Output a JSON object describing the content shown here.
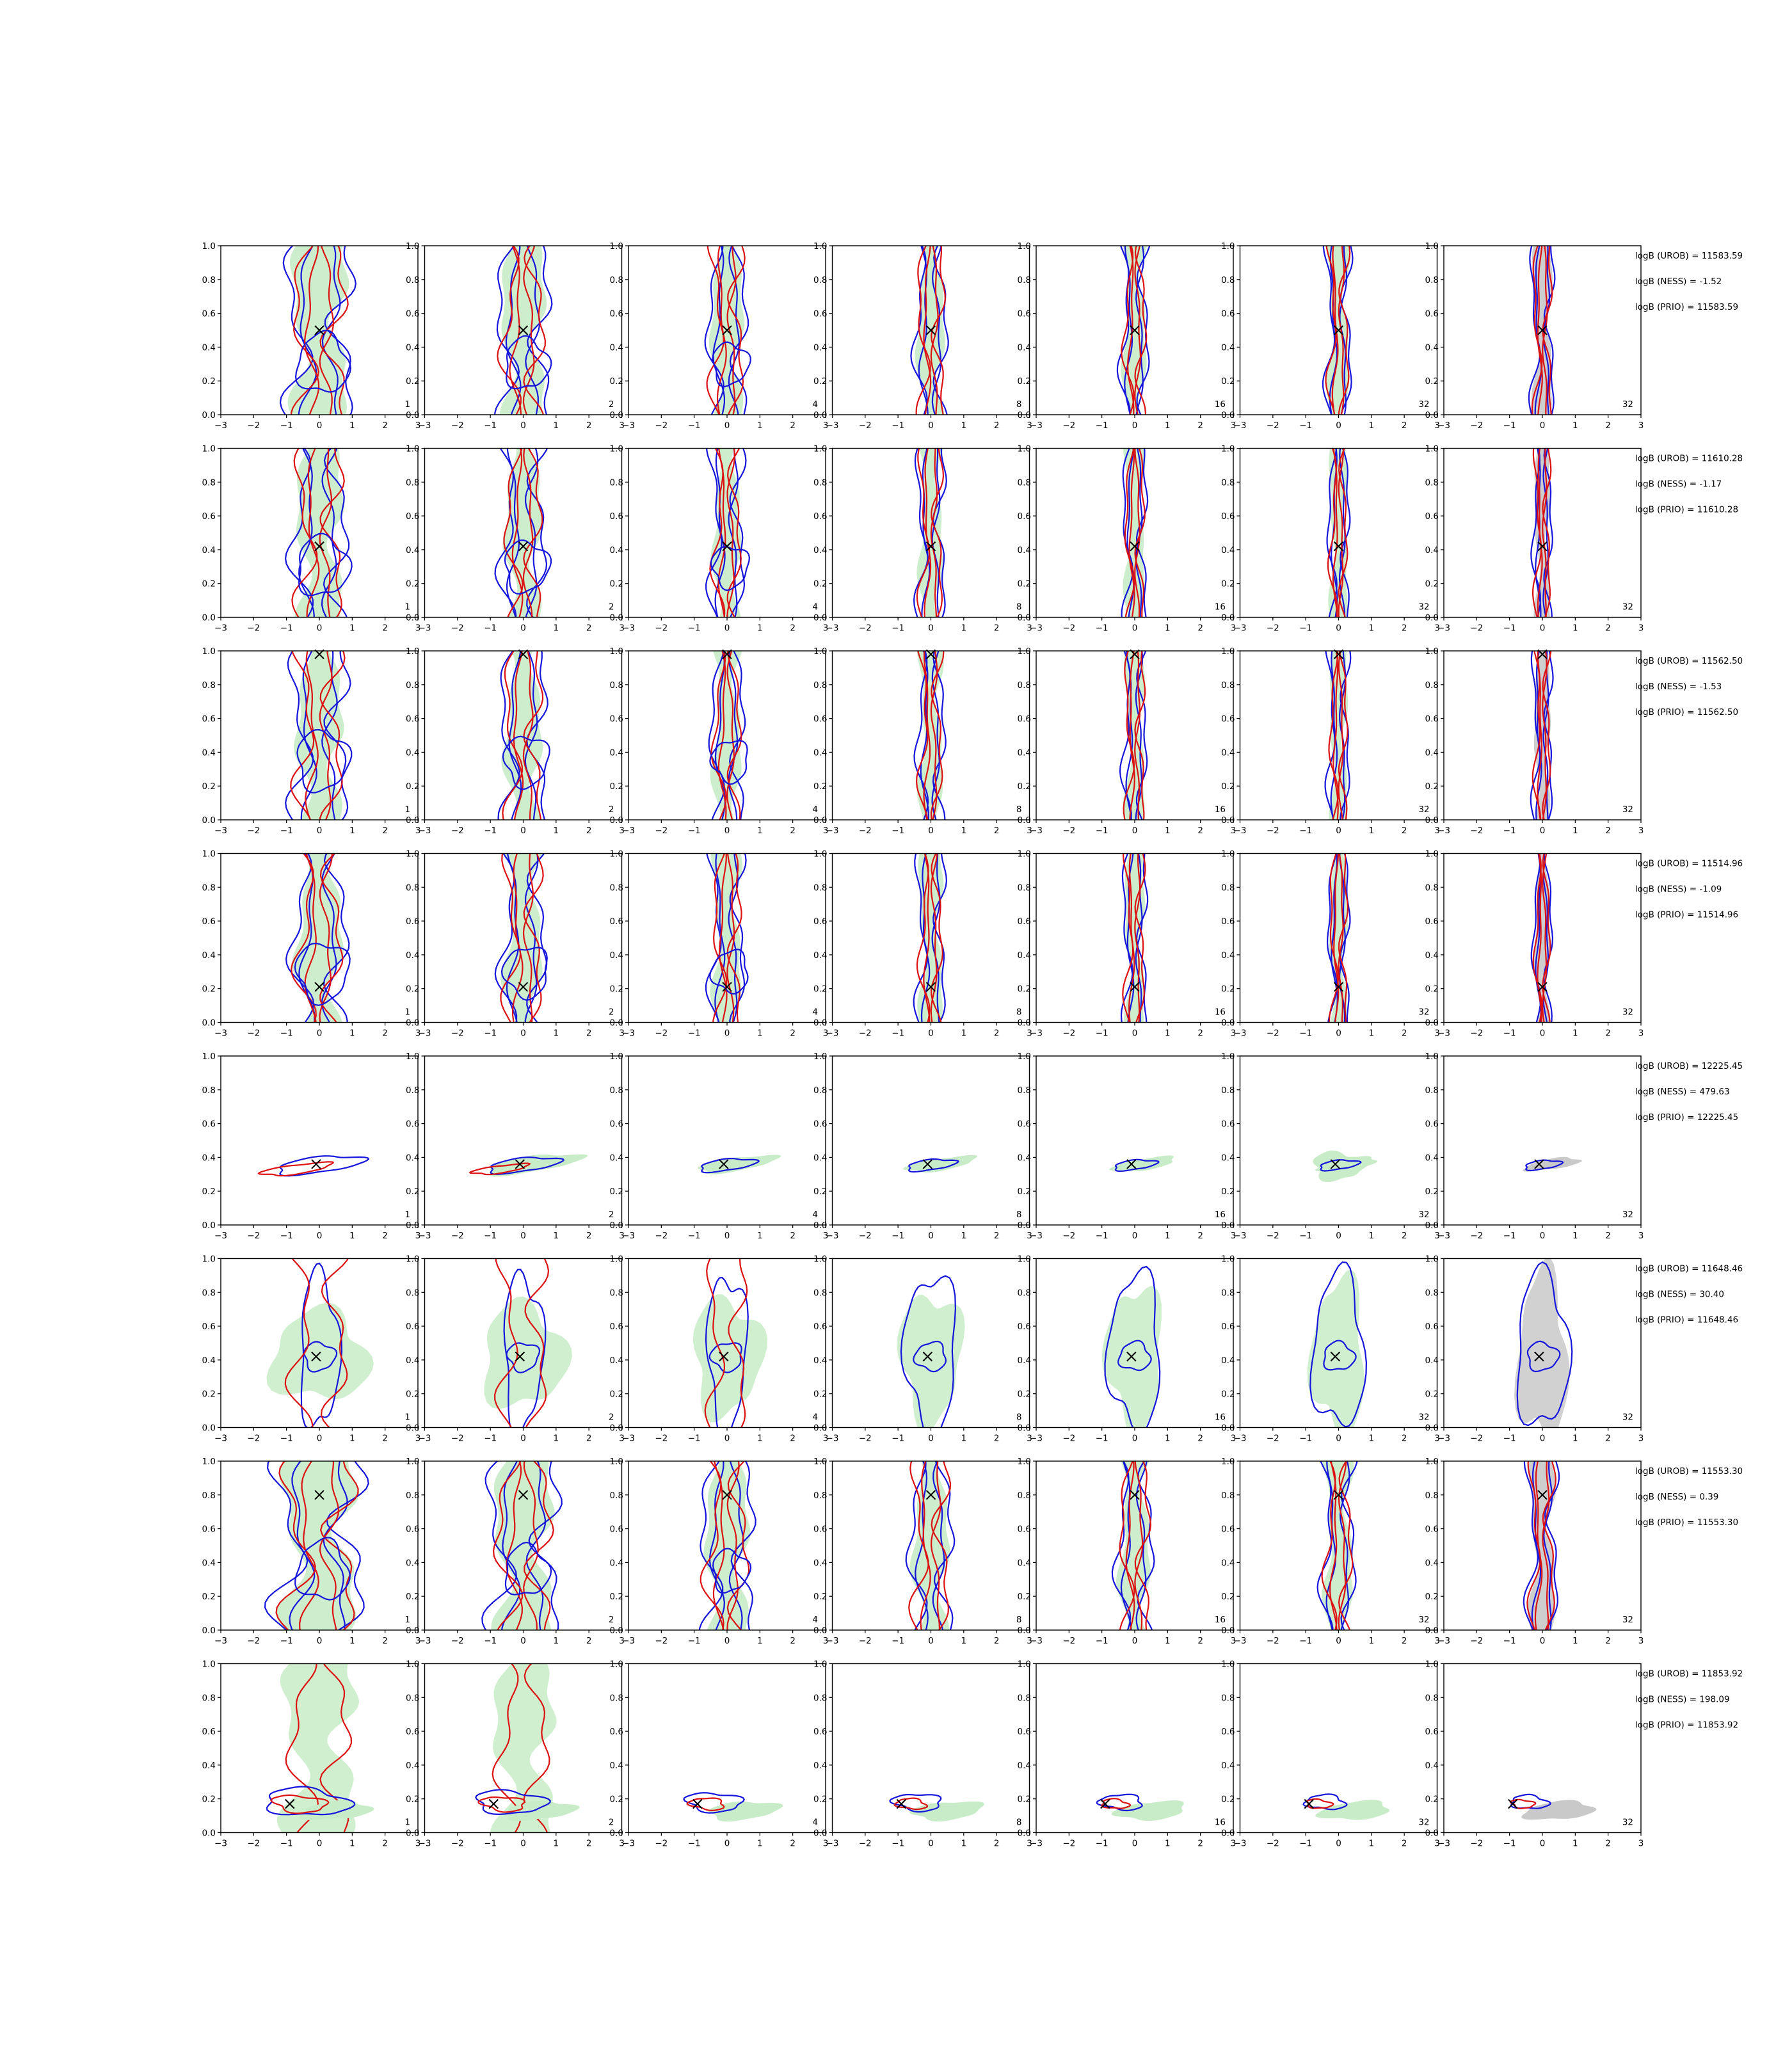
{
  "chart_data": {
    "type": "contour-grid",
    "title": "",
    "xlabel": "",
    "ylabel": "",
    "xlim": [
      -3,
      3
    ],
    "ylim": [
      0,
      1
    ],
    "xticks": [
      "−3",
      "−2",
      "−1",
      "0",
      "1",
      "2",
      "3"
    ],
    "yticks": [
      "0.0",
      "0.2",
      "0.4",
      "0.6",
      "0.8",
      "1.0"
    ],
    "column_labels": [
      "1",
      "2",
      "4",
      "8",
      "16",
      "32",
      "32"
    ],
    "colors": {
      "red": "#dd1111",
      "blue": "#1515dd",
      "green": "#c7ecc7",
      "gray": "#c9c9c9",
      "marker": "#000000"
    },
    "rows": [
      {
        "marker": [
          0.0,
          0.5
        ],
        "kind": "vertical",
        "spread": 1.0,
        "logB": {
          "urob": "logB (UROB) = 11583.59",
          "ness": "logB (NESS) = -1.52",
          "prio": "logB (PRIO) = 11583.59"
        }
      },
      {
        "marker": [
          0.0,
          0.42
        ],
        "kind": "vertical",
        "spread": 0.85,
        "logB": {
          "urob": "logB (UROB) = 11610.28",
          "ness": "logB (NESS) = -1.17",
          "prio": "logB (PRIO) = 11610.28"
        }
      },
      {
        "marker": [
          0.0,
          0.98
        ],
        "kind": "vertical",
        "spread": 0.85,
        "logB": {
          "urob": "logB (UROB) = 11562.50",
          "ness": "logB (NESS) = -1.53",
          "prio": "logB (PRIO) = 11562.50"
        }
      },
      {
        "marker": [
          0.0,
          0.21
        ],
        "kind": "vertical",
        "spread": 0.85,
        "logB": {
          "urob": "logB (UROB) = 11514.96",
          "ness": "logB (NESS) = -1.09",
          "prio": "logB (PRIO) = 11514.96"
        }
      },
      {
        "marker": [
          -0.1,
          0.36
        ],
        "kind": "tilted",
        "spread": 1.0,
        "logB": {
          "urob": "logB (UROB) = 12225.45",
          "ness": "logB (NESS) = 479.63",
          "prio": "logB (PRIO) = 12225.45"
        }
      },
      {
        "marker": [
          -0.1,
          0.42
        ],
        "kind": "blob",
        "spread": 1.0,
        "logB": {
          "urob": "logB (UROB) = 11648.46",
          "ness": "logB (NESS) = 30.40",
          "prio": "logB (PRIO) = 11648.46"
        }
      },
      {
        "marker": [
          0.0,
          0.8
        ],
        "kind": "vertical-wide",
        "spread": 1.0,
        "logB": {
          "urob": "logB (UROB) = 11553.30",
          "ness": "logB (NESS) = 0.39",
          "prio": "logB (PRIO) = 11553.30"
        }
      },
      {
        "marker": [
          -0.9,
          0.17
        ],
        "kind": "low",
        "spread": 1.0,
        "logB": {
          "urob": "logB (UROB) = 11853.92",
          "ness": "logB (NESS) = 198.09",
          "prio": "logB (PRIO) = 11853.92"
        }
      }
    ]
  }
}
